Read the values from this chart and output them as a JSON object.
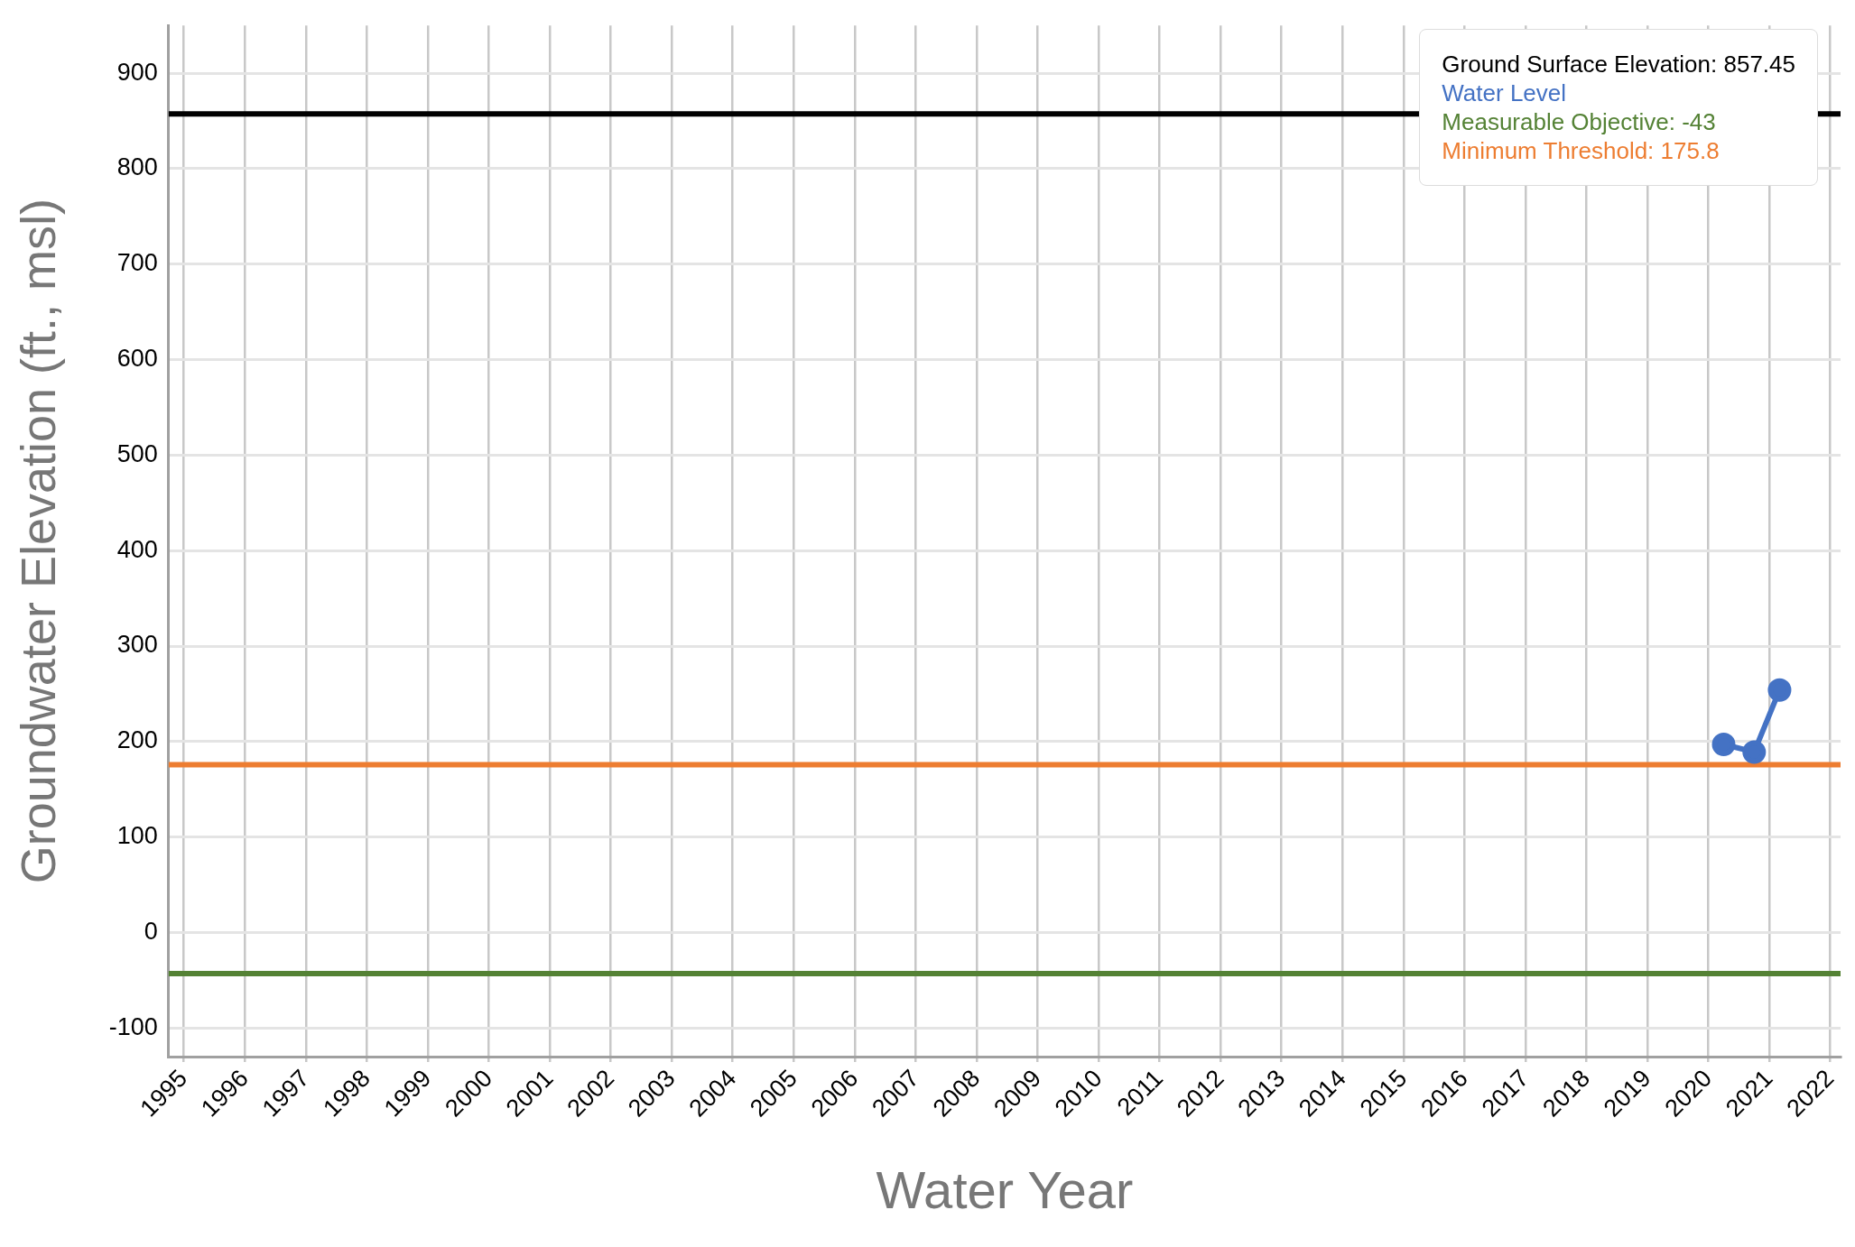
{
  "chart_data": {
    "type": "line",
    "xlabel": "Water Year",
    "ylabel": "Groundwater Elevation (ft., msl)",
    "xlim": [
      "1994-10",
      "2022-03"
    ],
    "ylim": [
      -130,
      950
    ],
    "xticks": [
      "1995",
      "1996",
      "1997",
      "1998",
      "1999",
      "2000",
      "2001",
      "2002",
      "2003",
      "2004",
      "2005",
      "2006",
      "2007",
      "2008",
      "2009",
      "2010",
      "2011",
      "2012",
      "2013",
      "2014",
      "2015",
      "2016",
      "2017",
      "2018",
      "2019",
      "2020",
      "2021",
      "2022"
    ],
    "yticks": [
      -100,
      0,
      100,
      200,
      300,
      400,
      500,
      600,
      700,
      800,
      900
    ],
    "grid": true,
    "legend": "top right",
    "line_style": "solid",
    "series": [
      {
        "name": "Ground Surface Elevation: 857.45",
        "color": "#000000",
        "marker": "none",
        "x": [
          "1994-10",
          "2022-03"
        ],
        "values": [
          857.45,
          857.45
        ]
      },
      {
        "name": "Water Level",
        "color": "#4472c4",
        "marker": "circle",
        "x": [
          "2020-04",
          "2020-10",
          "2021-03"
        ],
        "values": [
          197,
          189,
          254
        ]
      },
      {
        "name": "Measurable Objective: -43",
        "color": "#548235",
        "marker": "none",
        "x": [
          "1994-10",
          "2022-03"
        ],
        "values": [
          -43,
          -43
        ]
      },
      {
        "name": "Minimum Threshold: 175.8",
        "color": "#ed7d31",
        "marker": "none",
        "x": [
          "1994-10",
          "2022-03"
        ],
        "values": [
          175.8,
          175.8
        ]
      }
    ]
  }
}
